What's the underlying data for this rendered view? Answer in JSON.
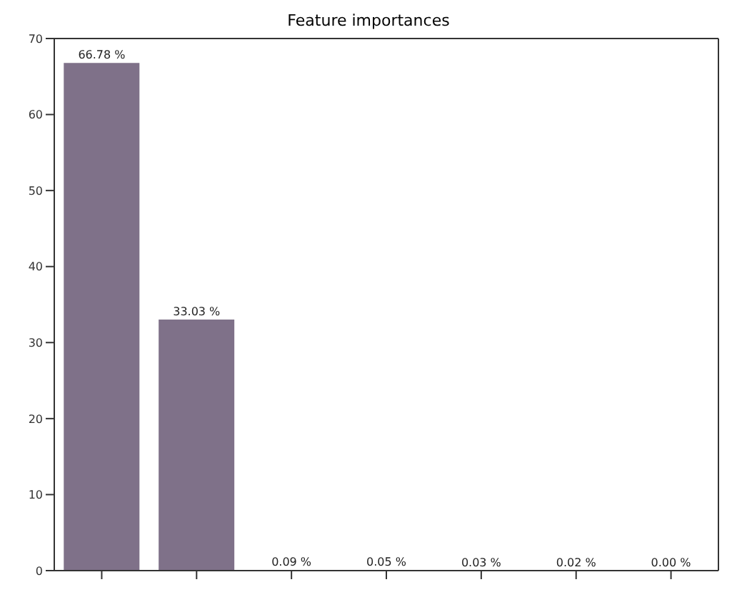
{
  "chart_data": {
    "type": "bar",
    "title": "Feature importances",
    "categories": [
      null,
      null,
      null,
      null,
      null,
      null,
      null
    ],
    "values": [
      66.78,
      33.03,
      0.09,
      0.05,
      0.03,
      0.02,
      0.0
    ],
    "value_labels": [
      "66.78 %",
      "33.03 %",
      "0.09 %",
      "0.05 %",
      "0.03 %",
      "0.02 %",
      "0.00 %"
    ],
    "color": "#7f7189",
    "ylim": [
      0,
      70
    ],
    "yticks": [
      0,
      10,
      20,
      30,
      40,
      50,
      60,
      70
    ],
    "grid": false
  }
}
